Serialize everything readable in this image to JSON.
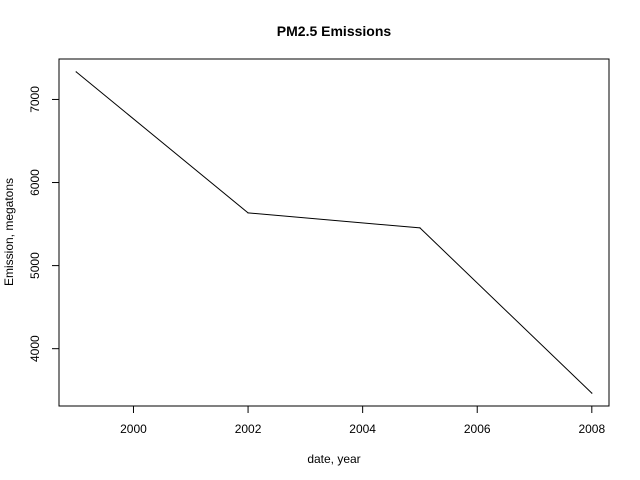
{
  "chart_data": {
    "type": "line",
    "title": "PM2.5 Emissions",
    "xlabel": "date, year",
    "ylabel": "Emission, megatons",
    "x": [
      1999,
      2002,
      2005,
      2008
    ],
    "series": [
      {
        "values": [
          7332,
          5635,
          5454,
          3465
        ]
      }
    ],
    "xlim": [
      1998.7,
      2008.3
    ],
    "ylim": [
      3310,
      7487
    ],
    "x_ticks": [
      {
        "value": 2000,
        "label": "2000"
      },
      {
        "value": 2002,
        "label": "2002"
      },
      {
        "value": 2004,
        "label": "2004"
      },
      {
        "value": 2006,
        "label": "2006"
      },
      {
        "value": 2008,
        "label": "2008"
      }
    ],
    "y_ticks": [
      {
        "value": 4000,
        "label": "4000"
      },
      {
        "value": 5000,
        "label": "5000"
      },
      {
        "value": 6000,
        "label": "6000"
      },
      {
        "value": 7000,
        "label": "7000"
      }
    ],
    "grid": false,
    "legend": "none",
    "line_color": "#000000"
  }
}
